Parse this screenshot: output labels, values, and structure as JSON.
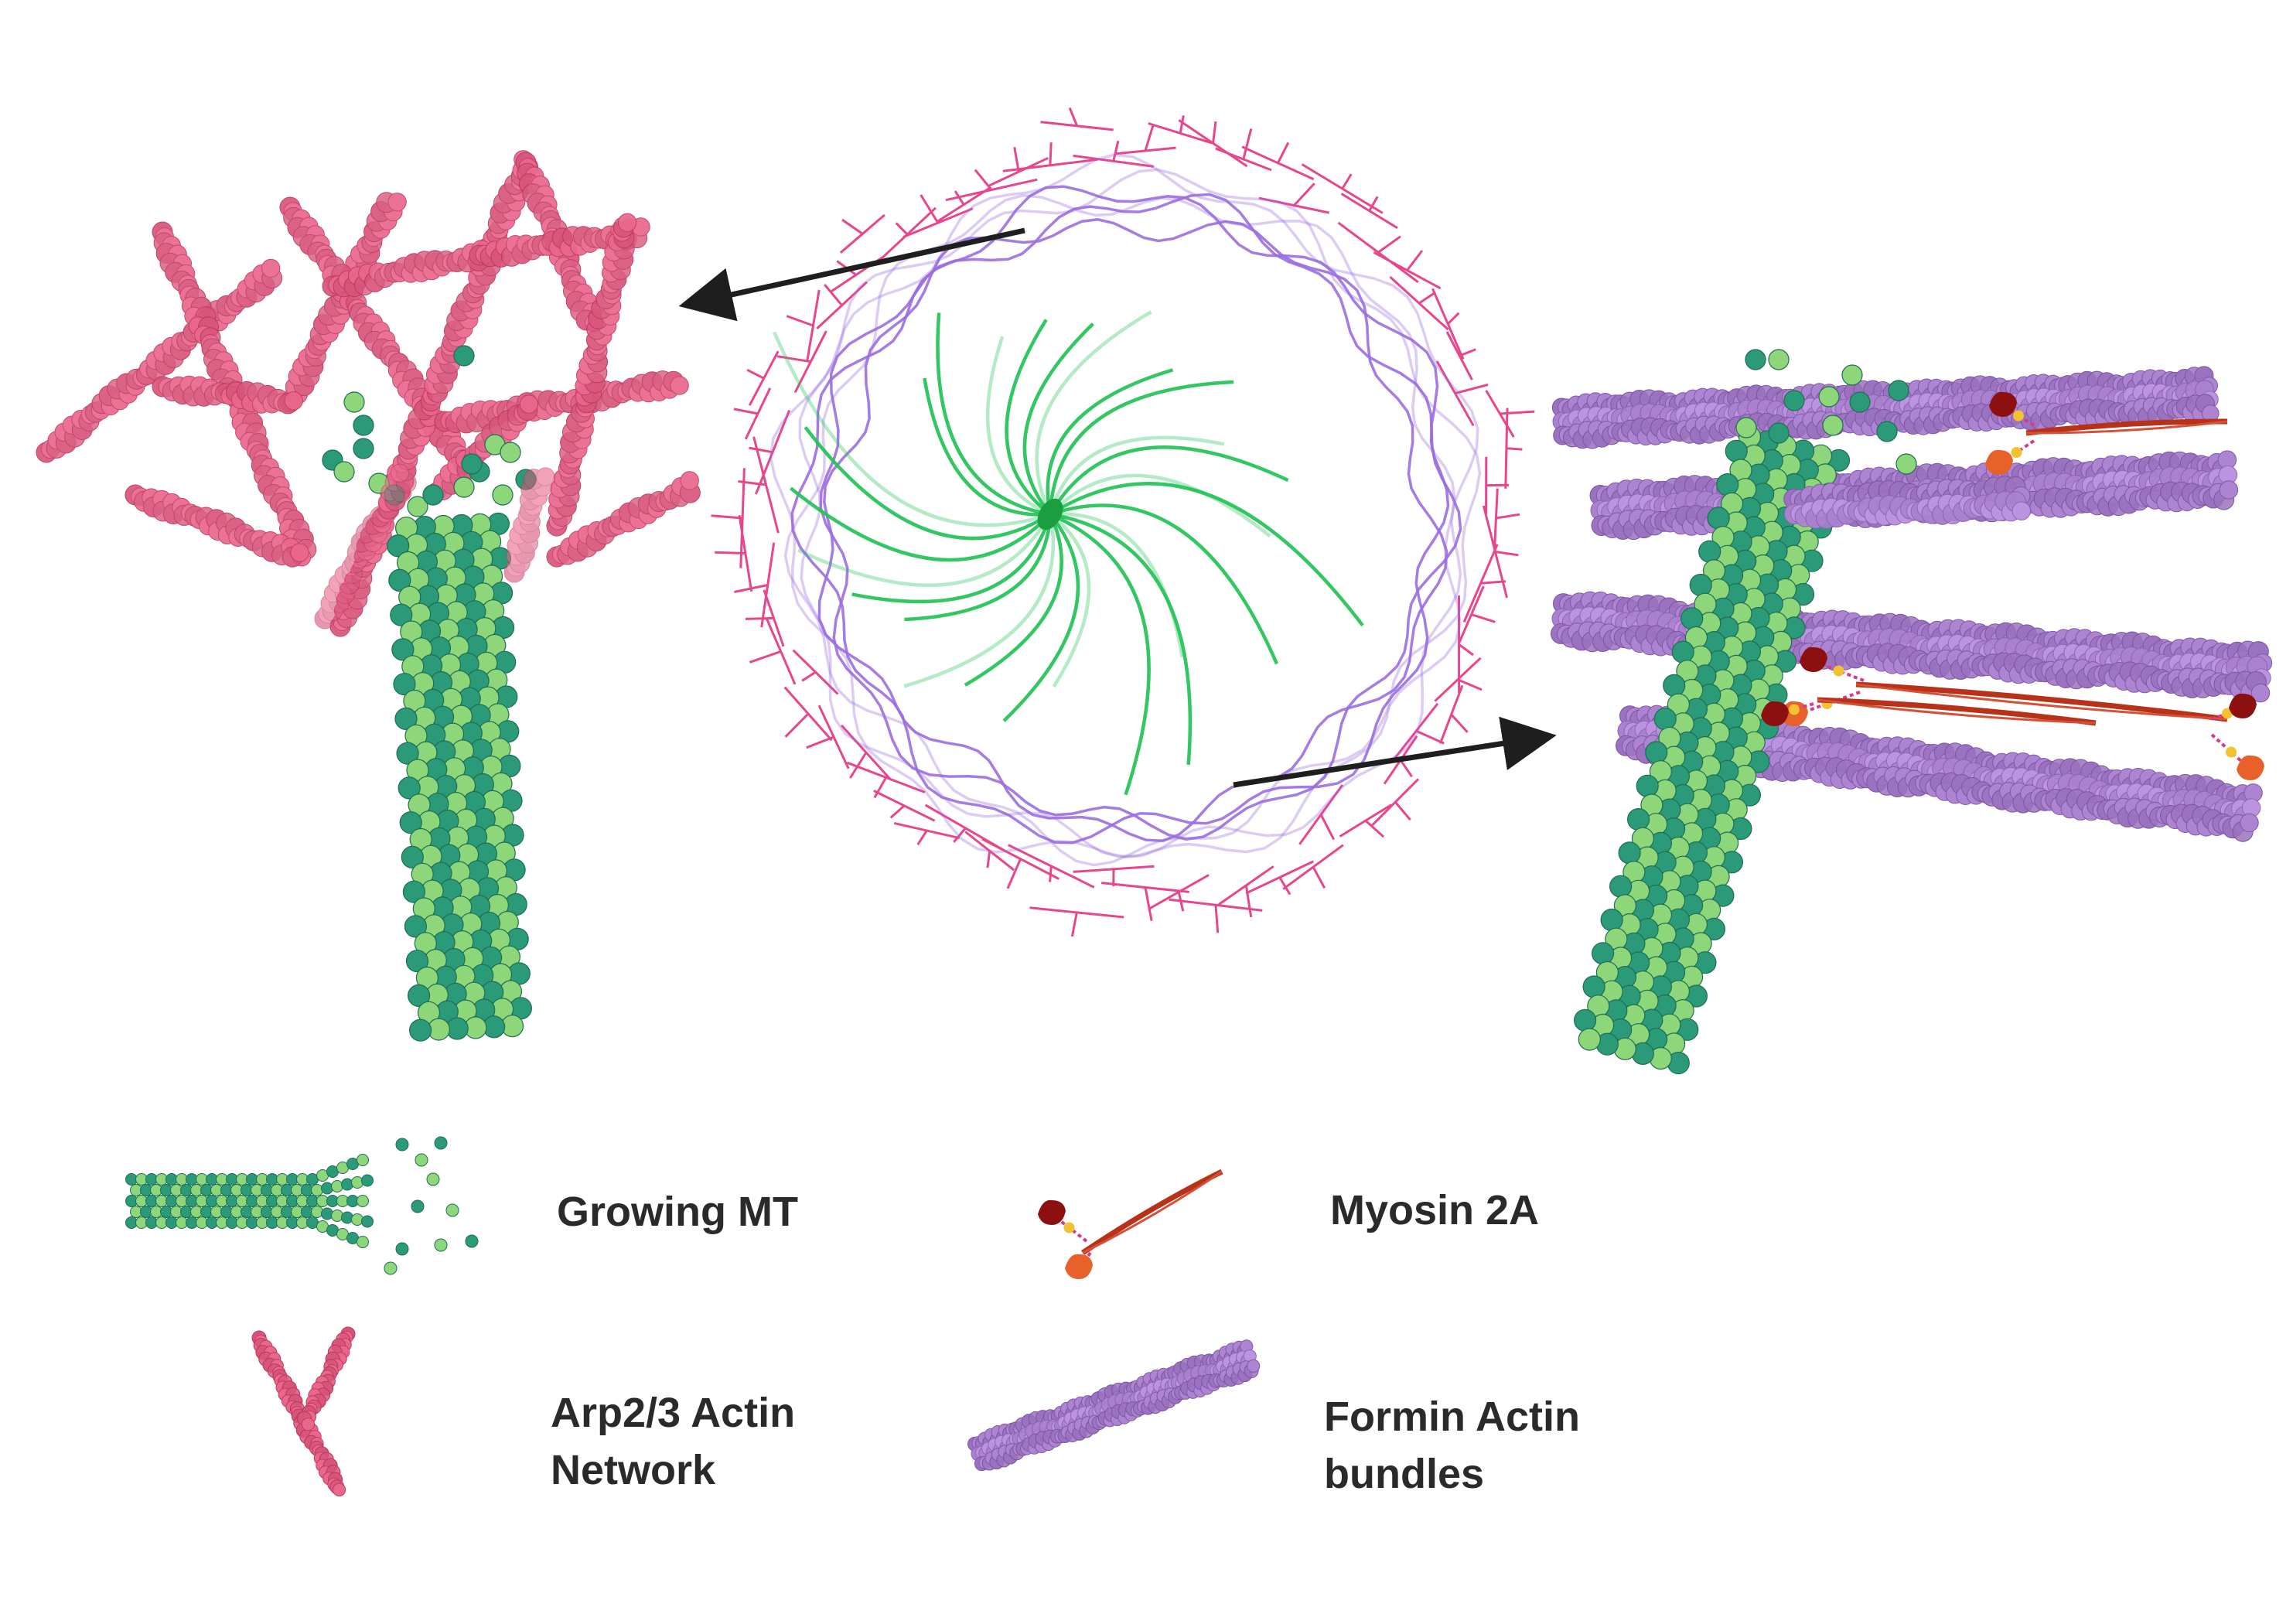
{
  "legend": {
    "growing_mt": {
      "line1": "Growing MT"
    },
    "arp23": {
      "line1": "Arp2/3 Actin",
      "line2": "Network"
    },
    "myosin": {
      "line1": "Myosin 2A"
    },
    "formin": {
      "line1": "Formin Actin",
      "line2": "bundles"
    }
  },
  "colors": {
    "microtubule_dark": "#2a9a78",
    "microtubule_light": "#8ed67a",
    "arp23_actin": "#d8557a",
    "formin_actin": "#9b72c0",
    "myosin_tail": "#b8321a",
    "myosin_head": "#8c1010",
    "myosin_head_alt": "#e8602a",
    "myosin_link": "#f2c230",
    "radial_mt": "#27c45a",
    "cell_cortex_pink": "#e8468c",
    "cell_cortex_purple": "#9a6ee0",
    "arrow": "#1e1e1e"
  },
  "icons": {
    "arrow_to_left": "arrow-icon",
    "arrow_to_right": "arrow-icon"
  }
}
